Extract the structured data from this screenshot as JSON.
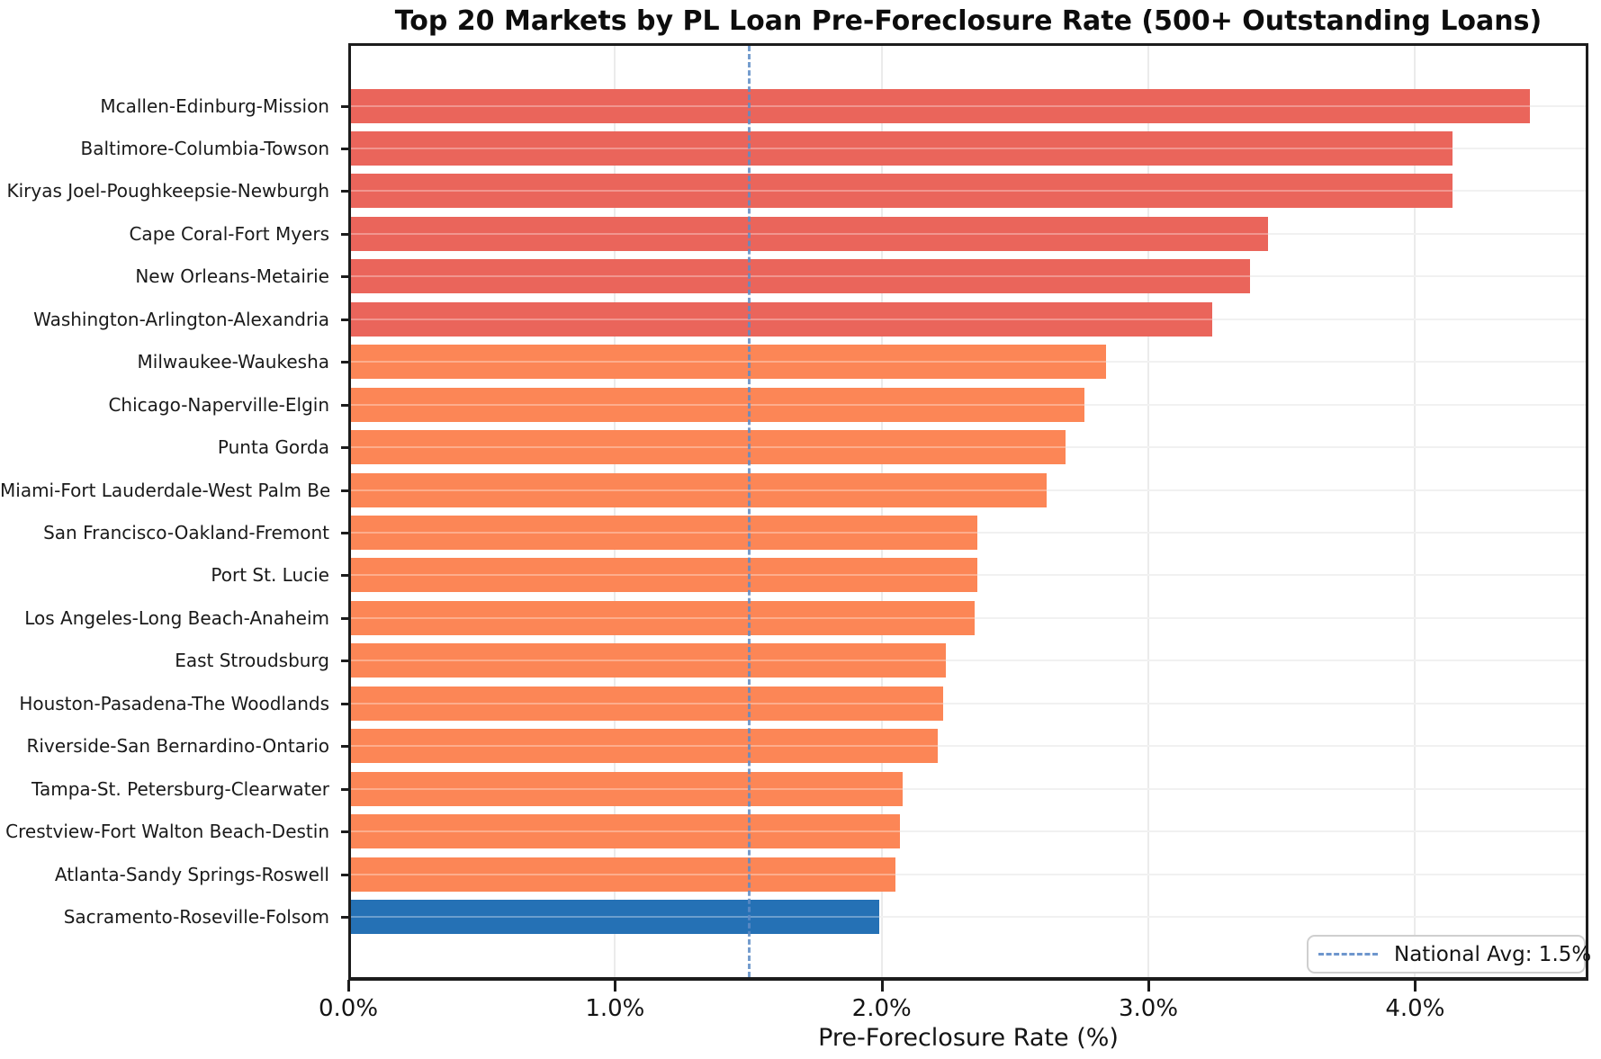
{
  "chart_data": {
    "type": "bar",
    "orientation": "horizontal",
    "title": "Top 20 Markets by PL Loan Pre-Foreclosure Rate (500+ Outstanding Loans)",
    "xlabel": "Pre-Foreclosure Rate (%)",
    "ylabel": "",
    "categories": [
      "Mcallen-Edinburg-Mission",
      "Baltimore-Columbia-Towson",
      "Kiryas Joel-Poughkeepsie-Newburgh",
      "Cape Coral-Fort Myers",
      "New Orleans-Metairie",
      "Washington-Arlington-Alexandria",
      "Milwaukee-Waukesha",
      "Chicago-Naperville-Elgin",
      "Punta Gorda",
      "Miami-Fort Lauderdale-West Palm Bea",
      "San Francisco-Oakland-Fremont",
      "Port St. Lucie",
      "Los Angeles-Long Beach-Anaheim",
      "East Stroudsburg",
      "Houston-Pasadena-The Woodlands",
      "Riverside-San Bernardino-Ontario",
      "Tampa-St. Petersburg-Clearwater",
      "Crestview-Fort Walton Beach-Destin",
      "Atlanta-Sandy Springs-Roswell",
      "Sacramento-Roseville-Folsom"
    ],
    "values": [
      4.43,
      4.14,
      4.14,
      3.45,
      3.38,
      3.24,
      2.84,
      2.76,
      2.69,
      2.62,
      2.36,
      2.36,
      2.35,
      2.24,
      2.23,
      2.21,
      2.08,
      2.07,
      2.05,
      1.99
    ],
    "bar_colors": [
      "#EA655B",
      "#EA655B",
      "#EA655B",
      "#EA655B",
      "#EA655B",
      "#EA655B",
      "#FC8656",
      "#FC8656",
      "#FC8656",
      "#FC8656",
      "#FC8656",
      "#FC8656",
      "#FC8656",
      "#FC8656",
      "#FC8656",
      "#FC8656",
      "#FC8656",
      "#FC8656",
      "#FC8656",
      "#2571B5"
    ],
    "xlim": [
      0,
      4.65
    ],
    "x_ticks": [
      "0.0%",
      "1.0%",
      "2.0%",
      "3.0%",
      "4.0%"
    ],
    "x_tick_values": [
      0,
      1,
      2,
      3,
      4
    ],
    "grid": true,
    "legend_position": "lower right",
    "reference_line": {
      "value": 1.5,
      "label": "National Avg: 1.5%",
      "color": "#5E8CC6",
      "style": "dashed"
    },
    "colors": {
      "high_rate": "#EA655B",
      "mid_rate": "#FC8656",
      "highlight": "#2571B5",
      "grid": "#ebebeb",
      "spine": "#1c1c1c",
      "avg_line": "#5E8CC6"
    }
  }
}
